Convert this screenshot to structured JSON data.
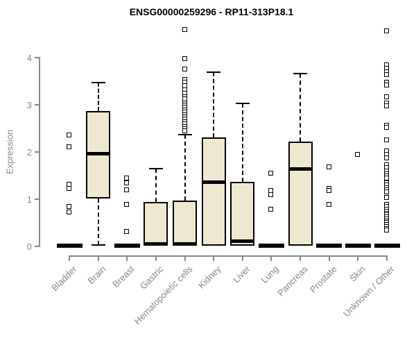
{
  "chart_data": {
    "type": "boxplot",
    "title": "ENSG00000259296 - RP11-313P18.1",
    "ylabel": "Expression",
    "xlabel": "",
    "ylim": [
      0,
      4.6
    ],
    "yticks": [
      0,
      1,
      2,
      3,
      4
    ],
    "grid": false,
    "legend": "none",
    "categories": [
      "Bladder",
      "Brain",
      "Breast",
      "Gastric",
      "Hematopoietic cells",
      "Kidney",
      "Liver",
      "Lung",
      "Pancreas",
      "Prostate",
      "Skin",
      "Unknown / Other"
    ],
    "series": [
      {
        "category": "Bladder",
        "q1": 0,
        "median": 0,
        "q3": 0,
        "whisker_low": 0,
        "whisker_high": 0,
        "outliers": [
          2.34,
          2.09,
          1.3,
          1.2,
          0.82,
          0.7
        ]
      },
      {
        "category": "Brain",
        "q1": 1.0,
        "median": 1.95,
        "q3": 2.85,
        "whisker_low": 0.02,
        "whisker_high": 3.45,
        "outliers": []
      },
      {
        "category": "Breast",
        "q1": 0,
        "median": 0,
        "q3": 0,
        "whisker_low": 0,
        "whisker_high": 0,
        "outliers": [
          1.42,
          1.32,
          1.18,
          0.87,
          0.3
        ]
      },
      {
        "category": "Gastric",
        "q1": 0,
        "median": 0.03,
        "q3": 0.93,
        "whisker_low": 0,
        "whisker_high": 1.63,
        "outliers": []
      },
      {
        "category": "Hematopoietic cells",
        "q1": 0,
        "median": 0.03,
        "q3": 0.95,
        "whisker_low": 0,
        "whisker_high": 2.36,
        "outliers": [
          4.58,
          3.96,
          3.74,
          3.52,
          3.45,
          3.38,
          3.3,
          3.22,
          3.15,
          3.1,
          3.02,
          2.97,
          2.92,
          2.87,
          2.82,
          2.77,
          2.72,
          2.67,
          2.62,
          2.57,
          2.52,
          2.47,
          2.42
        ]
      },
      {
        "category": "Kidney",
        "q1": 0,
        "median": 1.34,
        "q3": 2.3,
        "whisker_low": 0,
        "whisker_high": 3.67,
        "outliers": []
      },
      {
        "category": "Liver",
        "q1": 0,
        "median": 0.1,
        "q3": 1.36,
        "whisker_low": 0,
        "whisker_high": 3.01,
        "outliers": []
      },
      {
        "category": "Lung",
        "q1": 0,
        "median": 0,
        "q3": 0,
        "whisker_low": 0,
        "whisker_high": 0,
        "outliers": [
          1.53,
          1.16,
          1.08,
          0.77
        ]
      },
      {
        "category": "Pancreas",
        "q1": 0,
        "median": 1.63,
        "q3": 2.2,
        "whisker_low": 0,
        "whisker_high": 3.64,
        "outliers": []
      },
      {
        "category": "Prostate",
        "q1": 0,
        "median": 0,
        "q3": 0,
        "whisker_low": 0,
        "whisker_high": 0,
        "outliers": [
          1.66,
          1.21,
          1.16,
          0.87
        ]
      },
      {
        "category": "Skin",
        "q1": 0,
        "median": 0,
        "q3": 0,
        "whisker_low": 0,
        "whisker_high": 0,
        "outliers": [
          1.93
        ]
      },
      {
        "category": "Unknown / Other",
        "q1": 0,
        "median": 0,
        "q3": 0,
        "whisker_low": 0,
        "whisker_high": 0,
        "outliers": [
          4.55,
          3.82,
          3.75,
          3.68,
          3.62,
          3.45,
          3.4,
          3.15,
          3.02,
          2.95,
          2.55,
          2.5,
          2.24,
          2.0,
          1.93,
          1.86,
          1.7,
          1.64,
          1.58,
          1.52,
          1.47,
          1.43,
          1.33,
          1.28,
          1.22,
          1.17,
          1.13,
          1.01,
          0.87,
          0.82,
          0.77,
          0.72,
          0.68,
          0.64,
          0.6,
          0.56,
          0.52,
          0.48,
          0.44,
          0.4,
          0.36,
          0.33
        ]
      }
    ],
    "colors": {
      "box_fill": "#EFE8D1",
      "box_border": "#000000",
      "median": "#000000",
      "outlier": "#000000",
      "axis": "#878787",
      "tick_label": "#878787",
      "title": "#000000"
    }
  }
}
